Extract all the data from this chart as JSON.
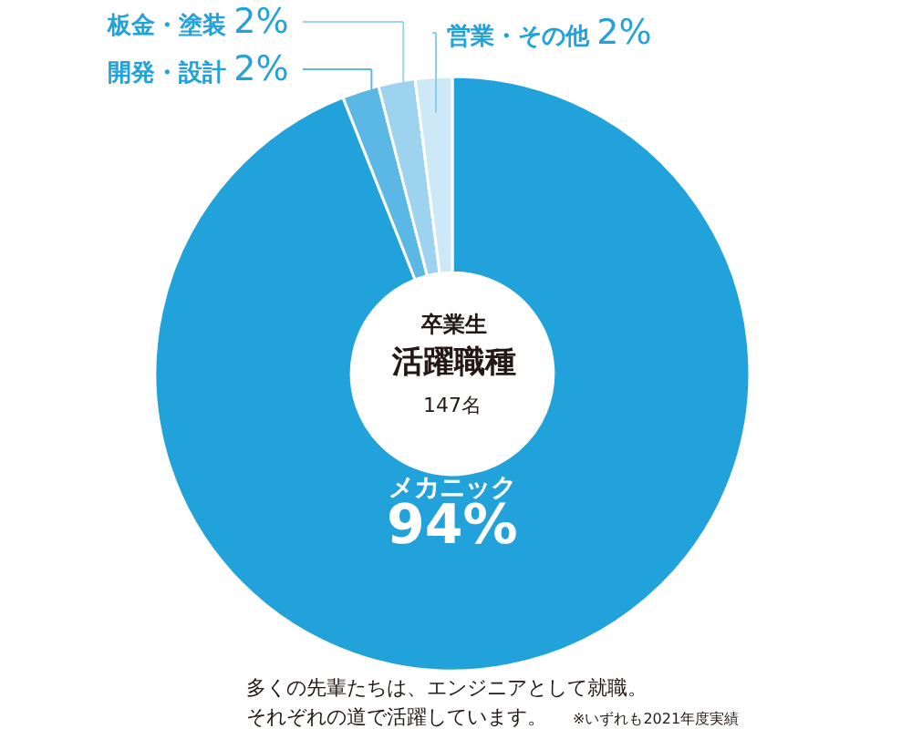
{
  "chart_data": {
    "type": "donut",
    "title": "活躍職種",
    "categories": [
      "メカニック",
      "開発・設計",
      "板金・塗装",
      "営業・その他"
    ],
    "values": [
      94,
      2,
      2,
      2
    ],
    "value_labels": [
      "94%",
      "2%",
      "2%",
      "2%"
    ],
    "colors": [
      "#22a2da",
      "#5bb7e3",
      "#9dd3ef",
      "#cde8f6"
    ],
    "legend": false,
    "annotations": [
      "卒業生",
      "147名",
      "多くの先輩たちは、エンジニアとして就職。",
      "それぞれの道で活躍しています。",
      "※いずれも2021年度実績"
    ]
  }
}
